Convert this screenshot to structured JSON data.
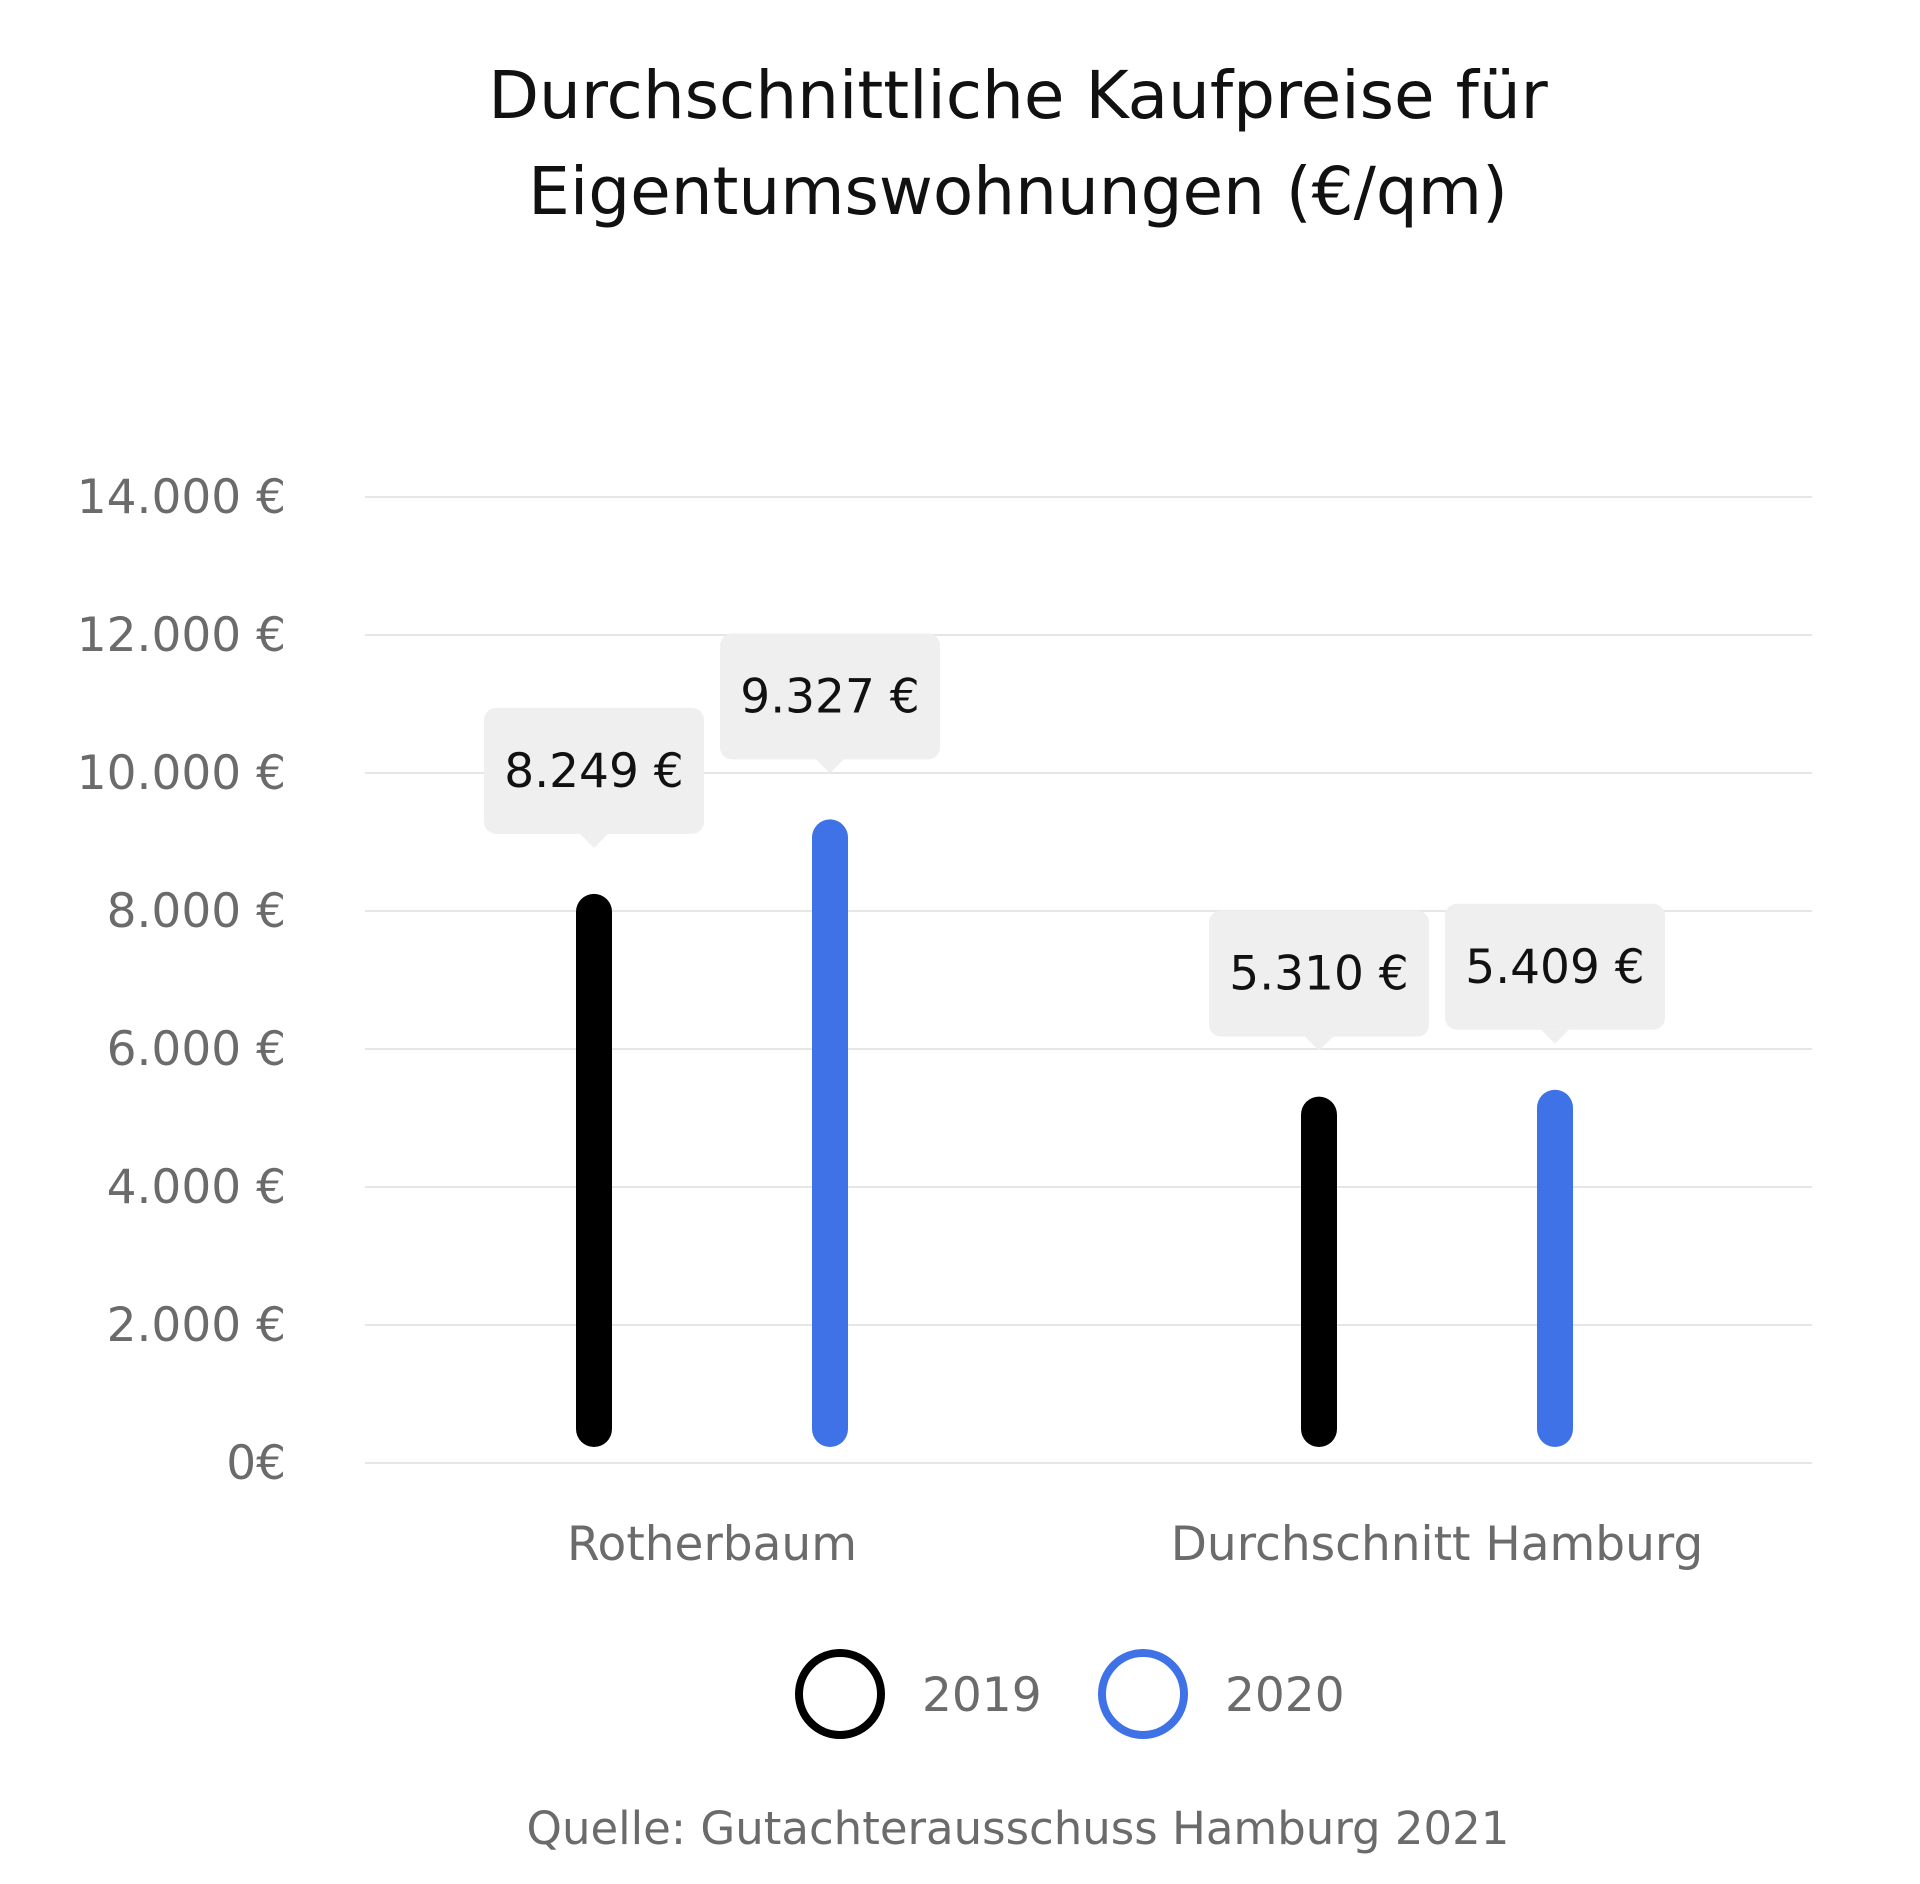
{
  "chart_data": {
    "type": "bar",
    "title_lines": [
      "Durchschnittliche Kaufpreise für",
      "Eigentumswohnungen (€/qm)"
    ],
    "categories": [
      "Rotherbaum",
      "Durchschnitt Hamburg"
    ],
    "series": [
      {
        "name": "2019",
        "color": "#000000",
        "values": [
          8249,
          5310
        ],
        "labels": [
          "8.249 €",
          "5.310 €"
        ]
      },
      {
        "name": "2020",
        "color": "#3f72e6",
        "values": [
          9327,
          5409
        ],
        "labels": [
          "9.327 €",
          "5.409 €"
        ]
      }
    ],
    "ylim": [
      0,
      14000
    ],
    "yticks": [
      0,
      2000,
      4000,
      6000,
      8000,
      10000,
      12000,
      14000
    ],
    "ytick_labels": [
      "0€",
      "2.000 €",
      "4.000 €",
      "6.000 €",
      "8.000 €",
      "10.000 €",
      "12.000 €",
      "14.000 €"
    ],
    "grid": true,
    "legend_position": "bottom-center",
    "source": "Quelle: Gutachterausschuss Hamburg 2021",
    "colors": {
      "grid": "#e6e6e6",
      "label_box": "#efefef",
      "muted_text": "#6b6b6b"
    }
  }
}
